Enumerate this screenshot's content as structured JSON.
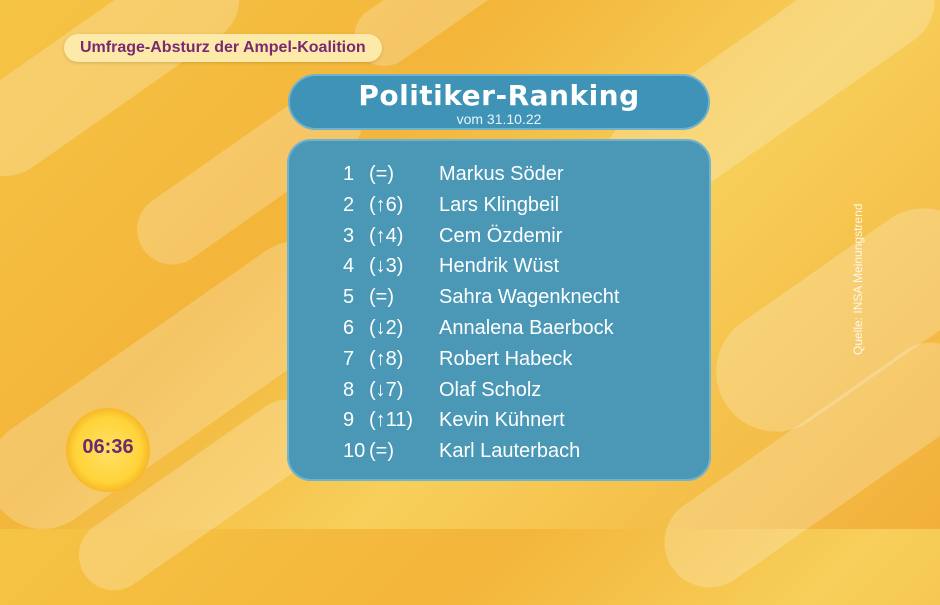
{
  "topic": "Umfrage-Absturz der Ampel-Koalition",
  "title": "Politiker-Ranking",
  "subtitle": "vom 31.10.22",
  "ranking": [
    {
      "rank": "1",
      "change": "(=)",
      "name": "Markus Söder"
    },
    {
      "rank": "2",
      "change": "(↑6)",
      "name": "Lars Klingbeil"
    },
    {
      "rank": "3",
      "change": "(↑4)",
      "name": "Cem Özdemir"
    },
    {
      "rank": "4",
      "change": "(↓3)",
      "name": "Hendrik Wüst"
    },
    {
      "rank": "5",
      "change": "(=)",
      "name": "Sahra Wagenknecht"
    },
    {
      "rank": "6",
      "change": "(↓2)",
      "name": "Annalena Baerbock"
    },
    {
      "rank": "7",
      "change": "(↑8)",
      "name": "Robert Habeck"
    },
    {
      "rank": "8",
      "change": "(↓7)",
      "name": "Olaf Scholz"
    },
    {
      "rank": "9",
      "change": "(↑11)",
      "name": "Kevin Kühnert"
    },
    {
      "rank": "10",
      "change": "(=)",
      "name": "Karl Lauterbach"
    }
  ],
  "source": "Quelle: INSA Meinungstrend",
  "clock": {
    "time": "06:36"
  },
  "colors": {
    "panel": "#4a98b6",
    "accent": "#7a2a70",
    "background": "#f6c445"
  }
}
